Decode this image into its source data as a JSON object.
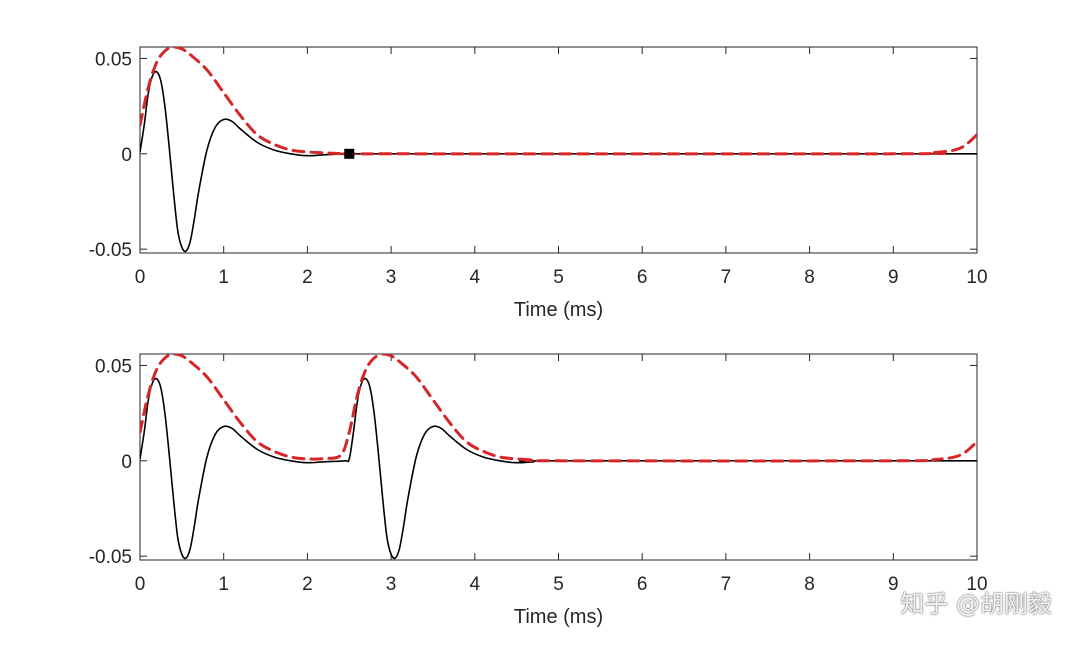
{
  "chart_data": [
    {
      "type": "line",
      "title": "",
      "xlabel": "Time (ms)",
      "ylabel": "",
      "xlim": [
        0,
        10
      ],
      "ylim": [
        -0.052,
        0.056
      ],
      "xticks": [
        0,
        1,
        2,
        3,
        4,
        5,
        6,
        7,
        8,
        9,
        10
      ],
      "xtick_labels": [
        "0",
        "1",
        "2",
        "3",
        "4",
        "5",
        "6",
        "7",
        "8",
        "9",
        "10"
      ],
      "yticks": [
        -0.05,
        0,
        0.05
      ],
      "ytick_labels": [
        "-0.05",
        "0",
        "0.05"
      ],
      "grid": false,
      "series": [
        {
          "style": "solid",
          "color": "#000000",
          "x": [
            0,
            0.05,
            0.1,
            0.15,
            0.2,
            0.25,
            0.3,
            0.35,
            0.4,
            0.45,
            0.5,
            0.55,
            0.6,
            0.65,
            0.7,
            0.8,
            0.9,
            1.0,
            1.1,
            1.2,
            1.4,
            1.6,
            1.8,
            2.0,
            2.2,
            2.5,
            3.0,
            10
          ],
          "y": [
            0.001,
            0.015,
            0.032,
            0.041,
            0.043,
            0.038,
            0.024,
            0.003,
            -0.02,
            -0.04,
            -0.049,
            -0.051,
            -0.046,
            -0.034,
            -0.02,
            0.002,
            0.014,
            0.018,
            0.017,
            0.013,
            0.006,
            0.002,
            0.0,
            -0.001,
            -0.0005,
            0.0,
            0.0,
            0.0
          ]
        },
        {
          "style": "dashed",
          "color": "#d62728",
          "x": [
            0,
            0.1,
            0.2,
            0.3,
            0.4,
            0.5,
            0.6,
            0.8,
            1.0,
            1.2,
            1.4,
            1.6,
            1.8,
            2.0,
            2.2,
            2.5,
            3.0,
            9.0,
            9.5,
            9.8,
            10
          ],
          "y": [
            0.015,
            0.035,
            0.048,
            0.054,
            0.056,
            0.055,
            0.052,
            0.044,
            0.032,
            0.02,
            0.01,
            0.005,
            0.002,
            0.001,
            0.0005,
            0.0,
            0.0,
            0.0,
            0.0007,
            0.003,
            0.01
          ]
        }
      ],
      "markers": [
        {
          "x": 2.5,
          "y": 0,
          "shape": "square",
          "color": "#000000"
        }
      ]
    },
    {
      "type": "line",
      "title": "",
      "xlabel": "Time (ms)",
      "ylabel": "",
      "xlim": [
        0,
        10
      ],
      "ylim": [
        -0.052,
        0.056
      ],
      "xticks": [
        0,
        1,
        2,
        3,
        4,
        5,
        6,
        7,
        8,
        9,
        10
      ],
      "xtick_labels": [
        "0",
        "1",
        "2",
        "3",
        "4",
        "5",
        "6",
        "7",
        "8",
        "9",
        "10"
      ],
      "yticks": [
        -0.05,
        0,
        0.05
      ],
      "ytick_labels": [
        "-0.05",
        "0",
        "0.05"
      ],
      "grid": false,
      "series": [
        {
          "style": "solid",
          "color": "#000000",
          "x": [
            0,
            0.05,
            0.1,
            0.15,
            0.2,
            0.25,
            0.3,
            0.35,
            0.4,
            0.45,
            0.5,
            0.55,
            0.6,
            0.65,
            0.7,
            0.8,
            0.9,
            1.0,
            1.1,
            1.2,
            1.4,
            1.6,
            1.8,
            2.0,
            2.2,
            2.45,
            2.5,
            2.55,
            2.6,
            2.65,
            2.7,
            2.75,
            2.8,
            2.85,
            2.9,
            2.95,
            3.0,
            3.05,
            3.1,
            3.15,
            3.2,
            3.3,
            3.4,
            3.5,
            3.6,
            3.7,
            3.9,
            4.1,
            4.3,
            4.5,
            4.7,
            5.0,
            10
          ],
          "y": [
            0.001,
            0.015,
            0.032,
            0.041,
            0.043,
            0.038,
            0.024,
            0.003,
            -0.02,
            -0.04,
            -0.049,
            -0.051,
            -0.046,
            -0.034,
            -0.02,
            0.002,
            0.014,
            0.018,
            0.017,
            0.013,
            0.006,
            0.002,
            0.0,
            -0.001,
            -0.0005,
            0.0,
            0.001,
            0.015,
            0.032,
            0.041,
            0.043,
            0.038,
            0.024,
            0.003,
            -0.02,
            -0.04,
            -0.049,
            -0.051,
            -0.046,
            -0.034,
            -0.02,
            0.002,
            0.014,
            0.018,
            0.017,
            0.013,
            0.006,
            0.002,
            0.0,
            -0.001,
            -0.0005,
            0.0,
            0.0
          ]
        },
        {
          "style": "dashed",
          "color": "#d62728",
          "x": [
            0,
            0.1,
            0.2,
            0.3,
            0.4,
            0.5,
            0.6,
            0.8,
            1.0,
            1.2,
            1.4,
            1.6,
            1.8,
            2.0,
            2.2,
            2.4,
            2.5,
            2.6,
            2.7,
            2.8,
            2.9,
            3.0,
            3.1,
            3.3,
            3.5,
            3.7,
            3.9,
            4.1,
            4.3,
            4.5,
            4.7,
            5.0,
            9.0,
            9.5,
            9.8,
            10
          ],
          "y": [
            0.015,
            0.035,
            0.048,
            0.054,
            0.056,
            0.055,
            0.052,
            0.044,
            0.032,
            0.02,
            0.01,
            0.005,
            0.002,
            0.001,
            0.0012,
            0.003,
            0.015,
            0.035,
            0.048,
            0.054,
            0.056,
            0.055,
            0.052,
            0.044,
            0.032,
            0.02,
            0.01,
            0.005,
            0.002,
            0.001,
            0.0005,
            0.0,
            0.0,
            0.0007,
            0.003,
            0.01
          ]
        }
      ],
      "markers": []
    }
  ],
  "watermark": "知乎 @胡刚毅"
}
